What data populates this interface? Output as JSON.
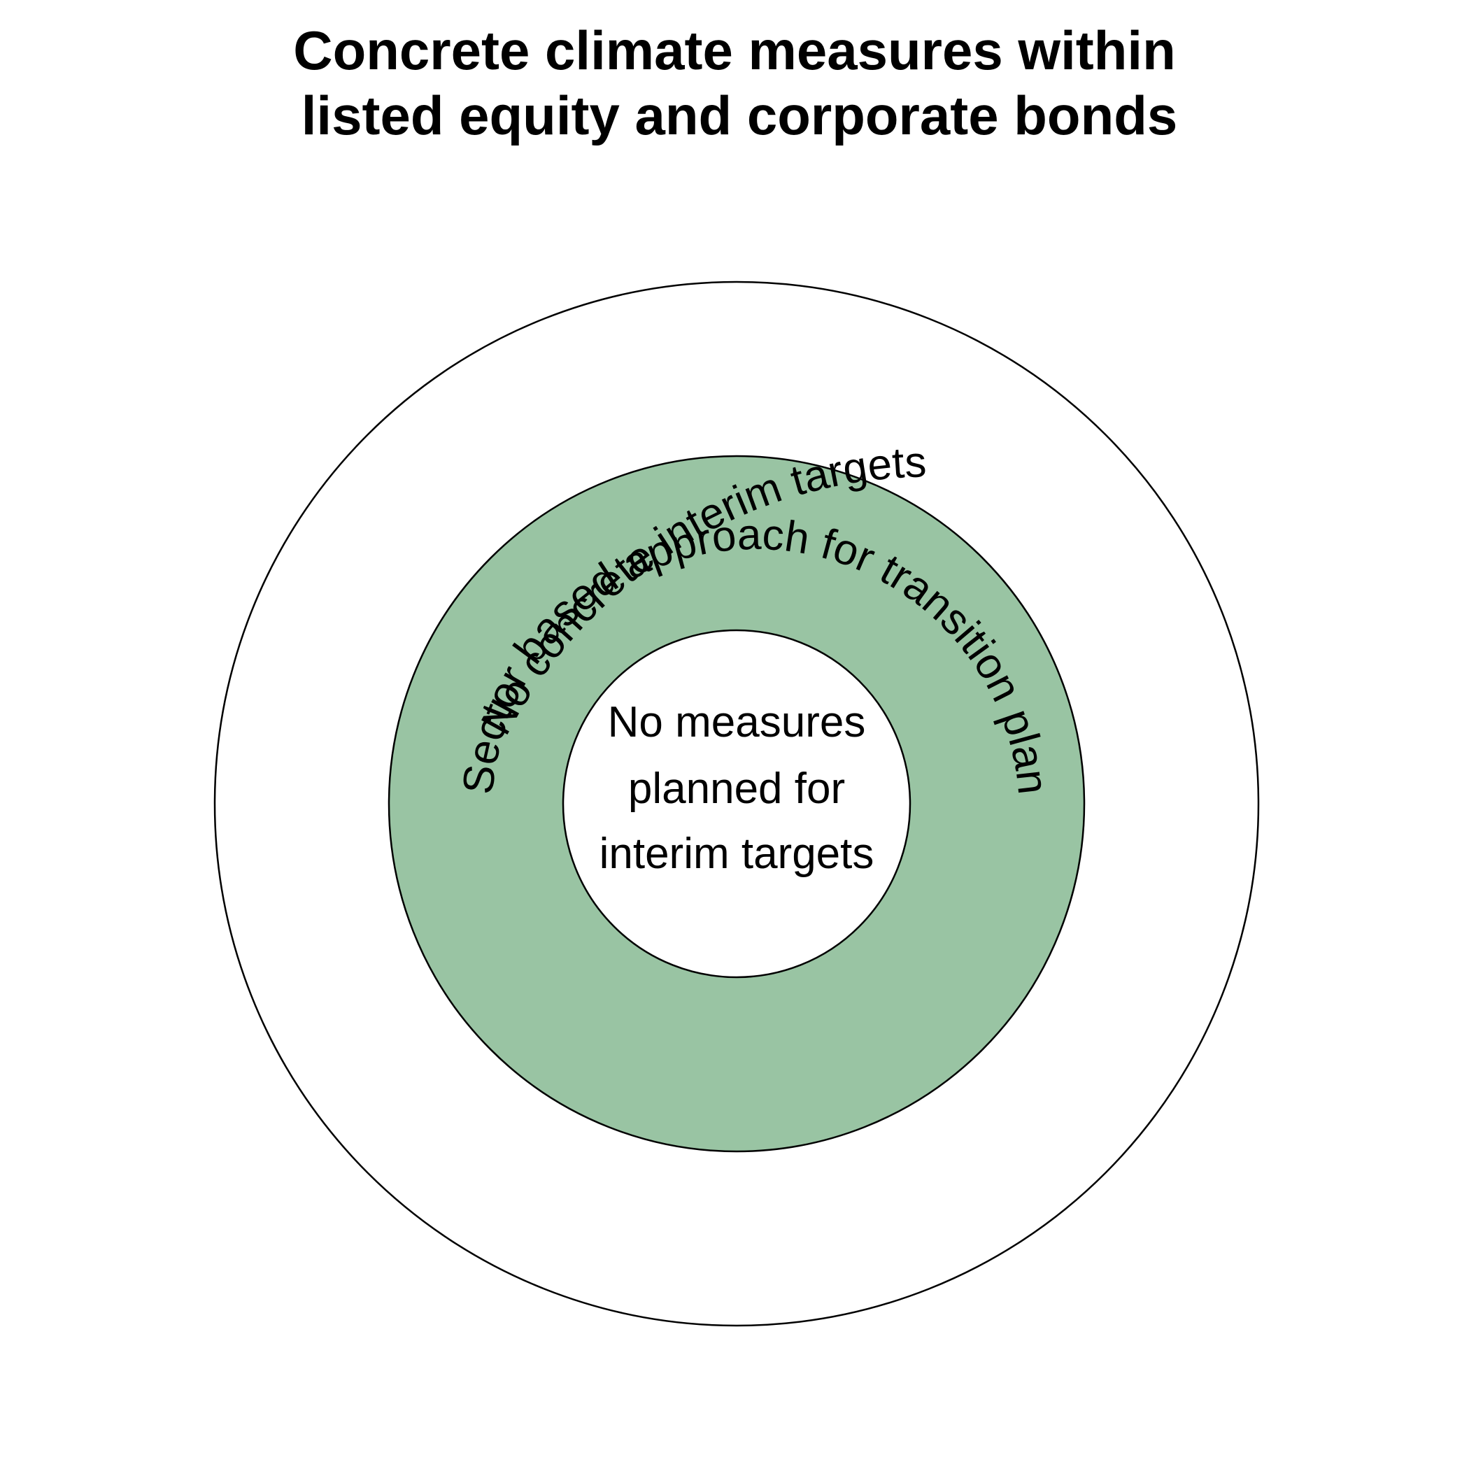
{
  "title": {
    "line1": "Concrete climate measures within",
    "line2": "listed equity and corporate bonds"
  },
  "rings": {
    "outer": {
      "label": "No  concrete interim targets",
      "fill": "#ffffff"
    },
    "middle": {
      "label": "Sector based approach for transition plan",
      "fill": "#99c4a3"
    },
    "inner": {
      "label_lines": [
        "No measures",
        "planned for",
        "interim targets"
      ],
      "fill": "#ffffff"
    }
  },
  "colors": {
    "stroke": "#000000",
    "background": "#ffffff"
  }
}
